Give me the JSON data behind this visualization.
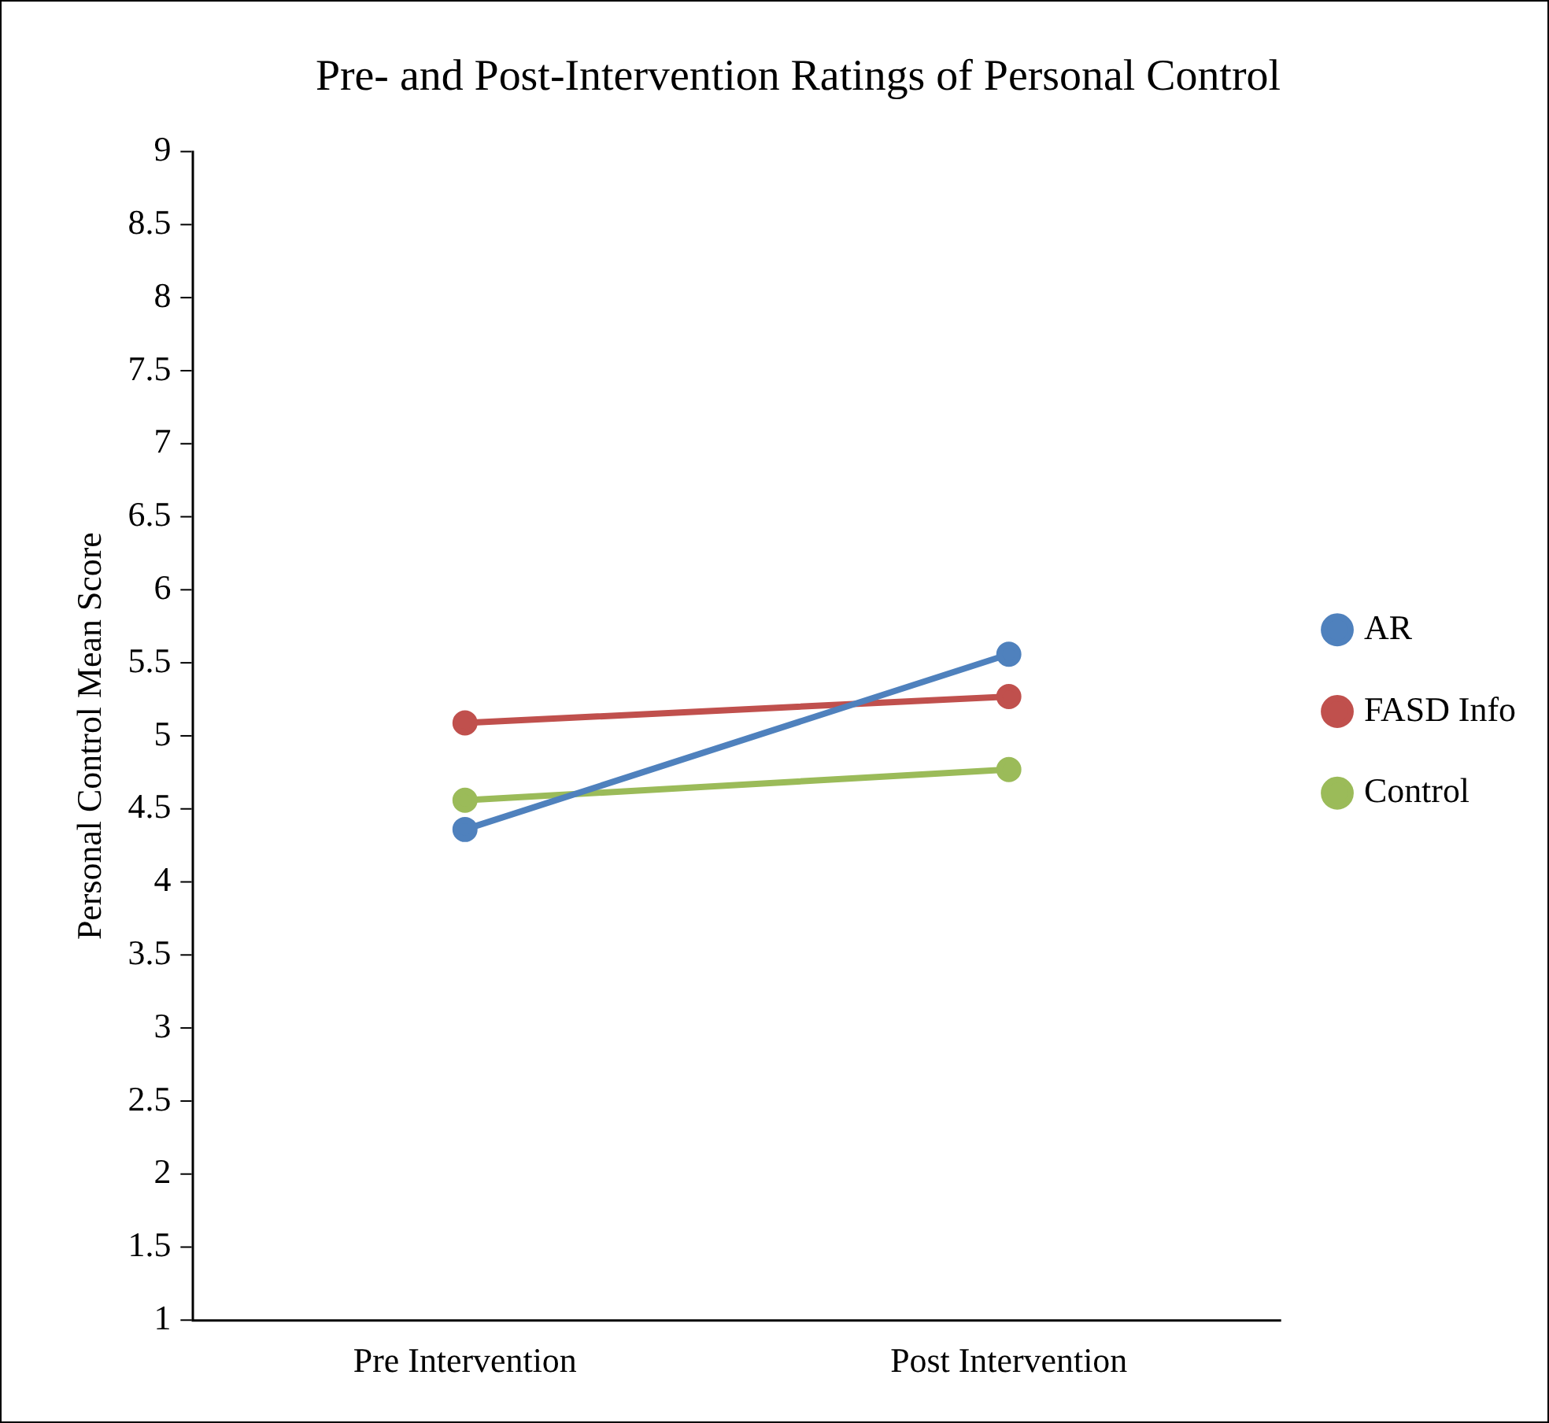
{
  "chart_data": {
    "type": "line",
    "title": "Pre- and Post-Intervention Ratings of Personal Control",
    "ylabel": "Personal Control Mean Score",
    "categories": [
      "Pre Intervention",
      "Post Intervention"
    ],
    "series": [
      {
        "name": "AR",
        "color": "#4f81bd",
        "values": [
          4.36,
          5.56
        ]
      },
      {
        "name": "FASD Info",
        "color": "#c0504d",
        "values": [
          5.09,
          5.27
        ]
      },
      {
        "name": "Control",
        "color": "#9bbb59",
        "values": [
          4.56,
          4.77
        ]
      }
    ],
    "ylim": [
      1,
      9
    ],
    "yticks": [
      1,
      1.5,
      2,
      2.5,
      3,
      3.5,
      4,
      4.5,
      5,
      5.5,
      6,
      6.5,
      7,
      7.5,
      8,
      8.5,
      9
    ],
    "grid": false,
    "legend": "right",
    "marker": "circle",
    "line_style": "solid"
  }
}
